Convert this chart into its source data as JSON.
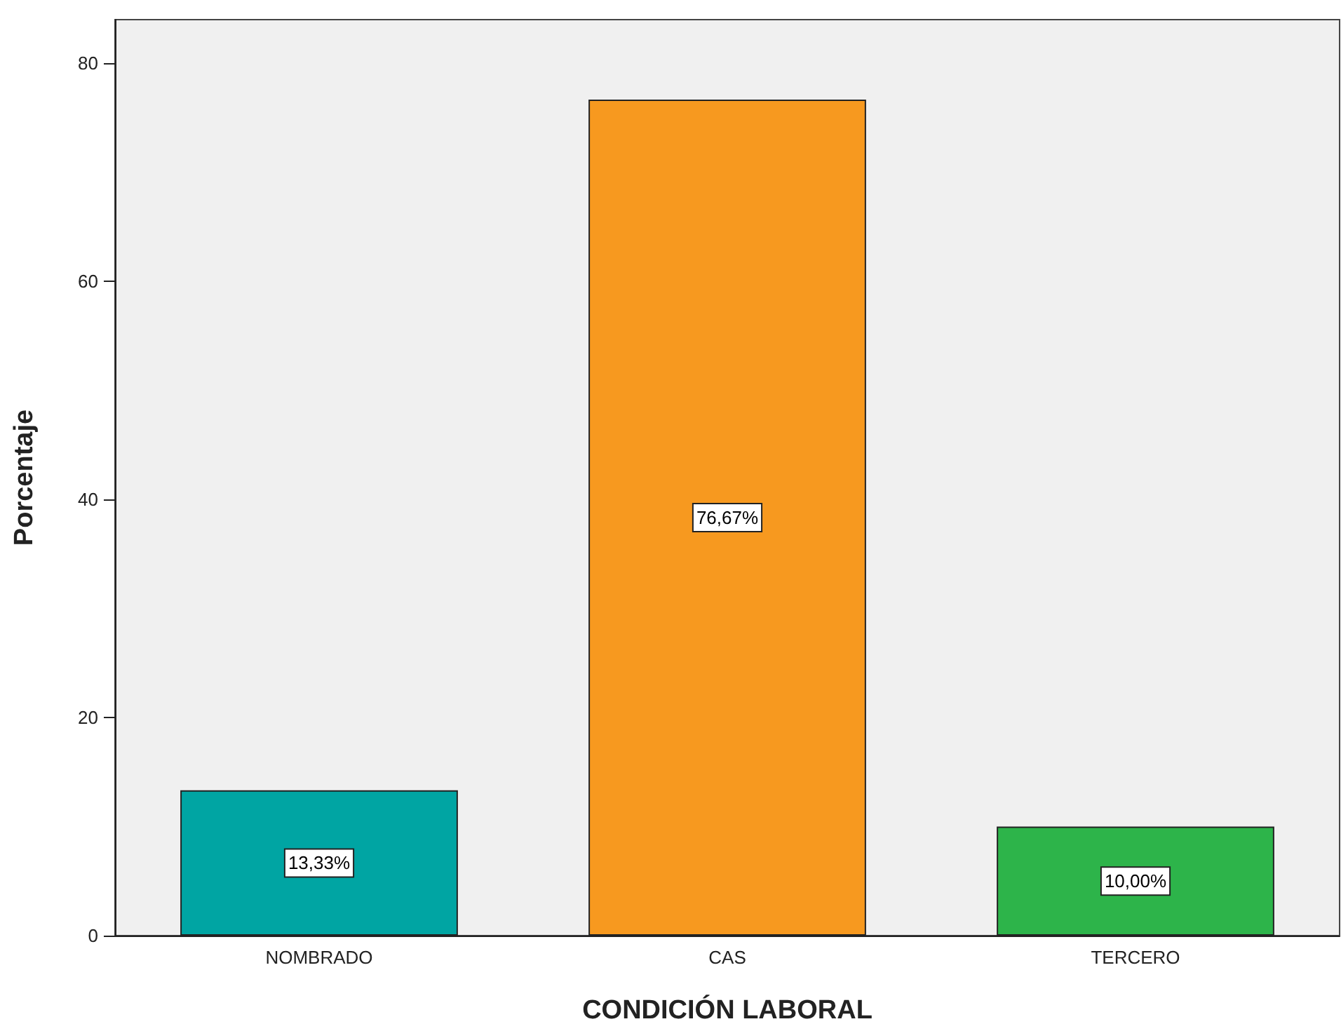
{
  "chart_data": {
    "type": "bar",
    "xlabel": "CONDICIÓN LABORAL",
    "ylabel": "Porcentaje",
    "categories": [
      "NOMBRADO",
      "CAS",
      "TERCERO"
    ],
    "values": [
      13.33,
      76.67,
      10.0
    ],
    "colors": [
      "#00a5a3",
      "#f7991f",
      "#2db44a"
    ],
    "value_labels": [
      "13,33%",
      "76,67%",
      "10,00%"
    ],
    "ylim": [
      0,
      84
    ],
    "yticks": [
      0,
      20,
      40,
      60,
      80
    ],
    "grid": false
  }
}
